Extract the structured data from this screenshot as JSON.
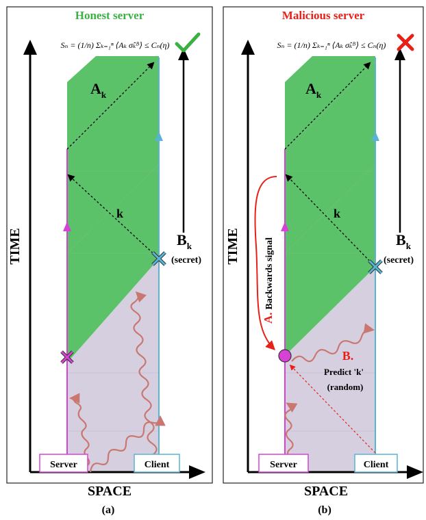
{
  "panels": [
    {
      "title": "Honest server",
      "title_color": "#3cb043",
      "formula": "Sₙ = (1/n) Σₖ₌₁ⁿ ⟨Aₖ σ̂ₖᴮ⟩ ≤ Cₙ(η)",
      "verdict": "check",
      "ak_label": "A",
      "ak_sub": "k",
      "k_label": "k",
      "bk_label": "B",
      "bk_sub": "k",
      "bk_note": "(secret)",
      "time_label": "TIME",
      "space_label": "SPACE",
      "server_label": "Server",
      "client_label": "Client",
      "caption": "(a)"
    },
    {
      "title": "Malicious server",
      "title_color": "#e8201a",
      "formula": "Sₙ = (1/n) Σₖ₌₁ⁿ ⟨Aₖ σ̂ₖᴮ⟩ ≤ Cₙ(η)",
      "verdict": "cross",
      "ak_label": "A",
      "ak_sub": "k",
      "k_label": "k",
      "bk_label": "B",
      "bk_sub": "k",
      "bk_note": "(secret)",
      "time_label": "TIME",
      "space_label": "SPACE",
      "server_label": "Server",
      "client_label": "Client",
      "caption": "(b)",
      "step_a_letter": "A.",
      "step_a_text": "Backwards signal",
      "step_b_letter": "B.",
      "step_b_text1": "Predict 'k'",
      "step_b_text2": "(random)"
    }
  ],
  "colors": {
    "green": "#5cc26a",
    "lavender": "#d5cfe0",
    "server": "#d642d6",
    "client": "#59b4d4",
    "wave": "#c97770",
    "red": "#e8201a"
  }
}
